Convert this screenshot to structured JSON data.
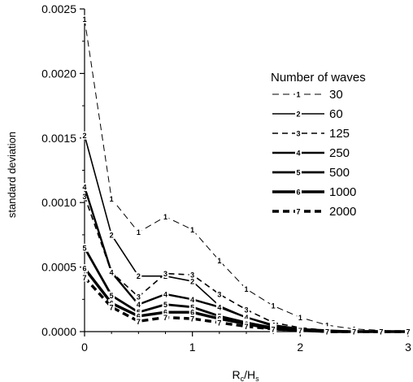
{
  "chart_data": {
    "type": "line",
    "xlabel": "R",
    "xlabel_sub1": "c",
    "xlabel_mid": "/H",
    "xlabel_sub2": "s",
    "ylabel": "standard deviation",
    "xlim": [
      0,
      3
    ],
    "ylim": [
      0,
      0.0025
    ],
    "xticks": [
      0,
      1,
      2,
      3
    ],
    "yticks": [
      0,
      0.0005,
      0.001,
      0.0015,
      0.002,
      0.0025
    ],
    "ytick_labels": [
      "0.0000",
      "0.0005",
      "0.0010",
      "0.0015",
      "0.0020",
      "0.0025"
    ],
    "grid": false,
    "legend_title": "Number of waves",
    "legend_position": "right",
    "x": [
      0,
      0.25,
      0.5,
      0.75,
      1.0,
      1.25,
      1.5,
      1.75,
      2.0,
      2.25,
      2.5,
      2.75,
      3.0
    ],
    "series": [
      {
        "name": "30",
        "marker": "1",
        "dash": "8,5",
        "width": 1,
        "values": [
          0.00242,
          0.00103,
          0.00077,
          0.00089,
          0.00079,
          0.00055,
          0.00033,
          0.0002,
          0.00011,
          5e-05,
          2e-05,
          1e-05,
          0.0
        ]
      },
      {
        "name": "60",
        "marker": "2",
        "dash": "",
        "width": 1.6,
        "values": [
          0.00152,
          0.00075,
          0.00043,
          0.00043,
          0.00039,
          0.0002,
          0.00011,
          4e-05,
          2e-05,
          1e-05,
          0.0,
          0.0,
          0.0
        ]
      },
      {
        "name": "125",
        "marker": "3",
        "dash": "7,5",
        "width": 1.6,
        "values": [
          0.00105,
          0.00046,
          0.00027,
          0.00045,
          0.00044,
          0.00029,
          0.00017,
          7e-05,
          3e-05,
          1e-05,
          0.0,
          0.0,
          0.0
        ]
      },
      {
        "name": "250",
        "marker": "4",
        "dash": "",
        "width": 2.4,
        "values": [
          0.00112,
          0.00046,
          0.00021,
          0.00029,
          0.00025,
          0.00019,
          0.00011,
          5e-05,
          2e-05,
          1e-05,
          0.0,
          0.0,
          0.0
        ]
      },
      {
        "name": "500",
        "marker": "5",
        "dash": "",
        "width": 2.8,
        "values": [
          0.00065,
          0.00028,
          0.00015,
          0.00021,
          0.00019,
          0.00012,
          7e-05,
          3e-05,
          1e-05,
          0.0,
          0.0,
          0.0,
          0.0
        ]
      },
      {
        "name": "1000",
        "marker": "6",
        "dash": "",
        "width": 3.4,
        "values": [
          0.00049,
          0.00022,
          0.00012,
          0.00015,
          0.00015,
          0.0001,
          6e-05,
          2e-05,
          1e-05,
          0.0,
          0.0,
          0.0,
          0.0
        ]
      },
      {
        "name": "2000",
        "marker": "7",
        "dash": "8,5",
        "width": 3.4,
        "values": [
          0.00042,
          0.00019,
          8e-05,
          0.00011,
          0.0001,
          7e-05,
          4e-05,
          2e-05,
          1e-05,
          0.0,
          0.0,
          0.0,
          0.0
        ]
      }
    ]
  }
}
